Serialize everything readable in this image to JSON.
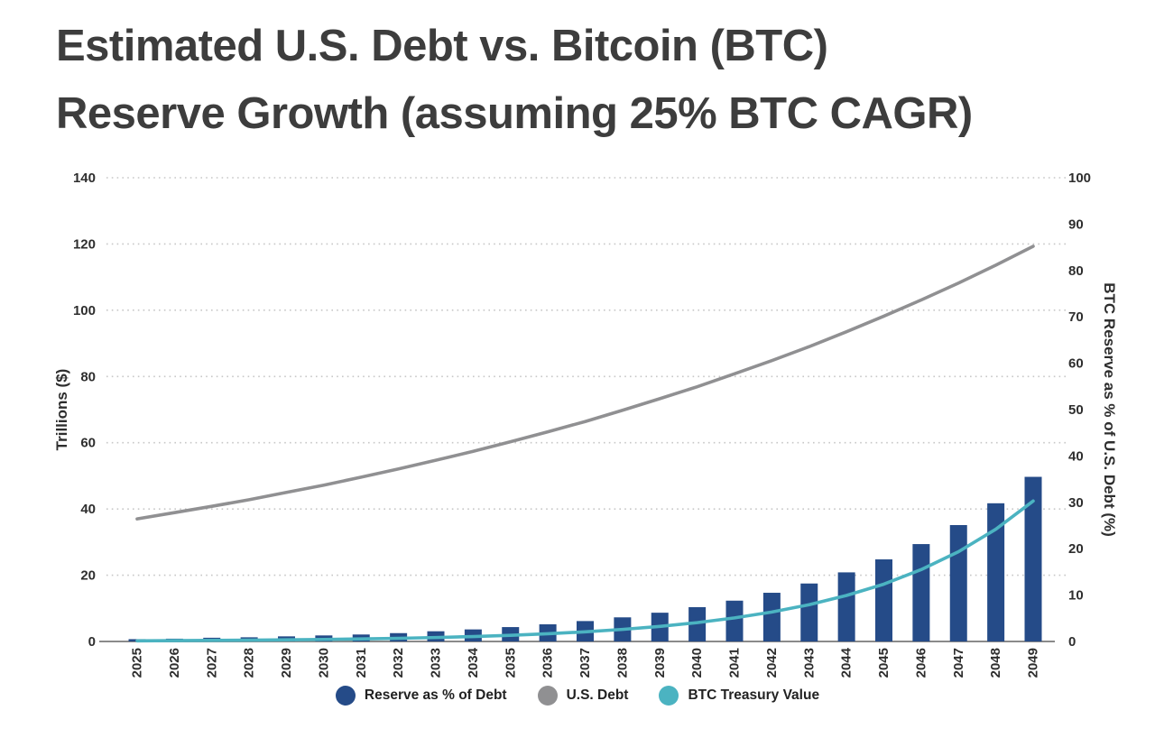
{
  "title": {
    "line1": "Estimated U.S. Debt vs. Bitcoin (BTC)",
    "line2": "Reserve Growth (assuming 25% BTC CAGR)"
  },
  "chart_data": {
    "type": "bar",
    "subtype": "combo-bar-line-dual-axis",
    "title": "Estimated U.S. Debt vs. Bitcoin (BTC) Reserve Growth (assuming 25% BTC CAGR)",
    "x": [
      2025,
      2026,
      2027,
      2028,
      2029,
      2030,
      2031,
      2032,
      2033,
      2034,
      2035,
      2036,
      2037,
      2038,
      2039,
      2040,
      2041,
      2042,
      2043,
      2044,
      2045,
      2046,
      2047,
      2048,
      2049
    ],
    "series": [
      {
        "name": "Reserve as % of Debt",
        "type": "bar",
        "axis": "right",
        "color": "#254b88",
        "values": [
          0.5,
          0.6,
          0.8,
          0.9,
          1.1,
          1.3,
          1.5,
          1.8,
          2.2,
          2.6,
          3.1,
          3.7,
          4.4,
          5.2,
          6.2,
          7.4,
          8.8,
          10.5,
          12.5,
          14.9,
          17.7,
          21.0,
          25.1,
          29.8,
          35.5
        ]
      },
      {
        "name": "U.S. Debt",
        "type": "line",
        "axis": "left",
        "color": "#909092",
        "values": [
          37.0,
          38.9,
          40.8,
          42.8,
          45.0,
          47.2,
          49.6,
          52.1,
          54.7,
          57.4,
          60.3,
          63.3,
          66.4,
          69.8,
          73.3,
          76.9,
          80.8,
          84.8,
          89.0,
          93.5,
          98.2,
          103.1,
          108.2,
          113.6,
          119.3
        ]
      },
      {
        "name": "BTC Treasury Value",
        "type": "line",
        "axis": "left",
        "color": "#4bb3c1",
        "values": [
          0.2,
          0.25,
          0.31,
          0.39,
          0.49,
          0.61,
          0.76,
          0.95,
          1.19,
          1.49,
          1.86,
          2.33,
          2.91,
          3.64,
          4.55,
          5.68,
          7.11,
          8.88,
          11.1,
          13.9,
          17.3,
          21.7,
          27.1,
          33.9,
          42.4
        ]
      }
    ],
    "left_axis": {
      "label": "Trillions ($)",
      "min": 0,
      "max": 140,
      "step": 20
    },
    "right_axis": {
      "label": "BTC Reserve as % of U.S. Debt (%)",
      "min": 0,
      "max": 100,
      "step": 10
    },
    "grid": "horizontal dotted",
    "legend_position": "bottom"
  }
}
